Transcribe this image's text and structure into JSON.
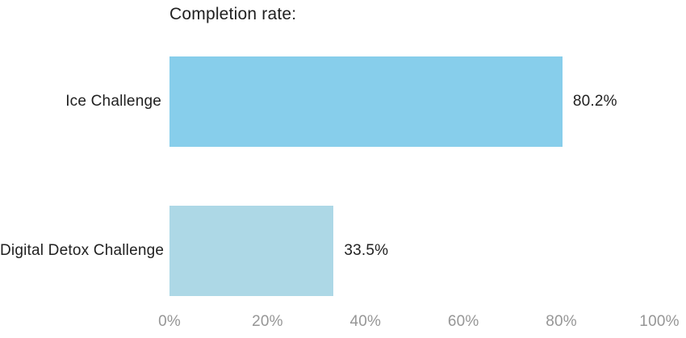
{
  "title": "Completion rate:",
  "colors": {
    "bar_ice_challenge": "#87CEEB",
    "bar_digital_detox": "#ADD8E6",
    "text": "#212121",
    "tick_text": "#969696",
    "background": "#FFFFFF"
  },
  "chart_data": {
    "type": "bar",
    "orientation": "horizontal",
    "title": "Completion rate:",
    "categories": [
      "Ice Challenge",
      "Digital Detox Challenge"
    ],
    "values": [
      80.2,
      33.5
    ],
    "value_labels": [
      "80.2%",
      "33.5%"
    ],
    "bar_colors": [
      "#87CEEB",
      "#ADD8E6"
    ],
    "xlabel": "",
    "ylabel": "",
    "xlim": [
      0,
      100
    ],
    "tick_values": [
      0,
      20,
      40,
      60,
      80,
      100
    ],
    "x_ticks": [
      "0%",
      "20%",
      "40%",
      "60%",
      "80%",
      "100%"
    ],
    "grid": false,
    "legend": false
  }
}
